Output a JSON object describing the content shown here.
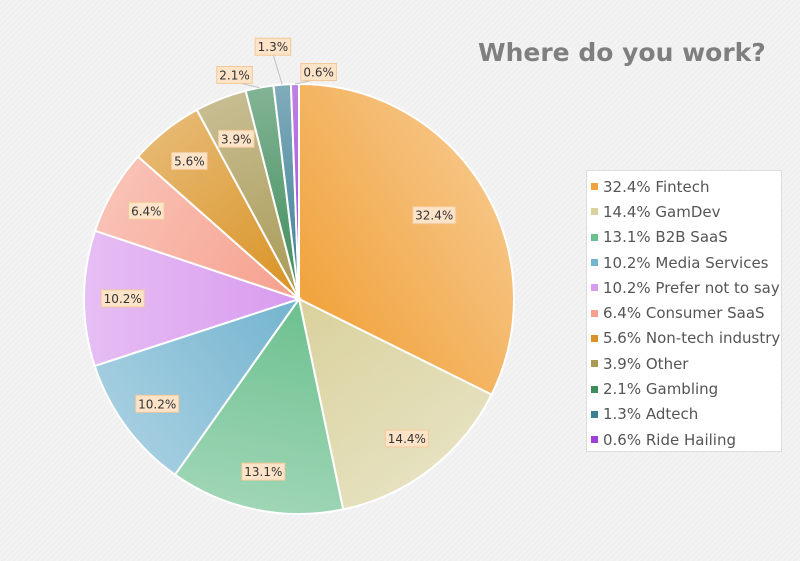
{
  "chart_data": {
    "type": "pie",
    "title": "Where do you work?",
    "categories": [
      "Fintech",
      "GamDev",
      "B2B SaaS",
      "Media Services",
      "Prefer not to say",
      "Consumer SaaS",
      "Non-tech industry",
      "Other",
      "Gambling",
      "Adtech",
      "Ride Hailing"
    ],
    "values": [
      32.4,
      14.4,
      13.1,
      10.2,
      10.2,
      6.4,
      5.6,
      3.9,
      2.1,
      1.3,
      0.6
    ],
    "data_labels": [
      "32.4%",
      "14.4%",
      "13.1%",
      "10.2%",
      "10.2%",
      "6.4%",
      "5.6%",
      "3.9%",
      "2.1%",
      "1.3%",
      "0.6%"
    ],
    "colors": [
      "#f1a33d",
      "#d9d19c",
      "#6cc08f",
      "#73b4cf",
      "#d99bee",
      "#f6a08d",
      "#d99223",
      "#a99a55",
      "#3f8b5b",
      "#3b7f96",
      "#9c40d6"
    ],
    "legend": {
      "position": "right",
      "entries": [
        "32.4% Fintech",
        "14.4% GamDev",
        "13.1% B2B SaaS",
        "10.2% Media Services",
        "10.2% Prefer not to say",
        "6.4% Consumer SaaS",
        "5.6% Non-tech industry",
        "3.9% Other",
        "2.1% Gambling",
        "1.3% Adtech",
        "0.6% Ride Hailing"
      ]
    }
  }
}
